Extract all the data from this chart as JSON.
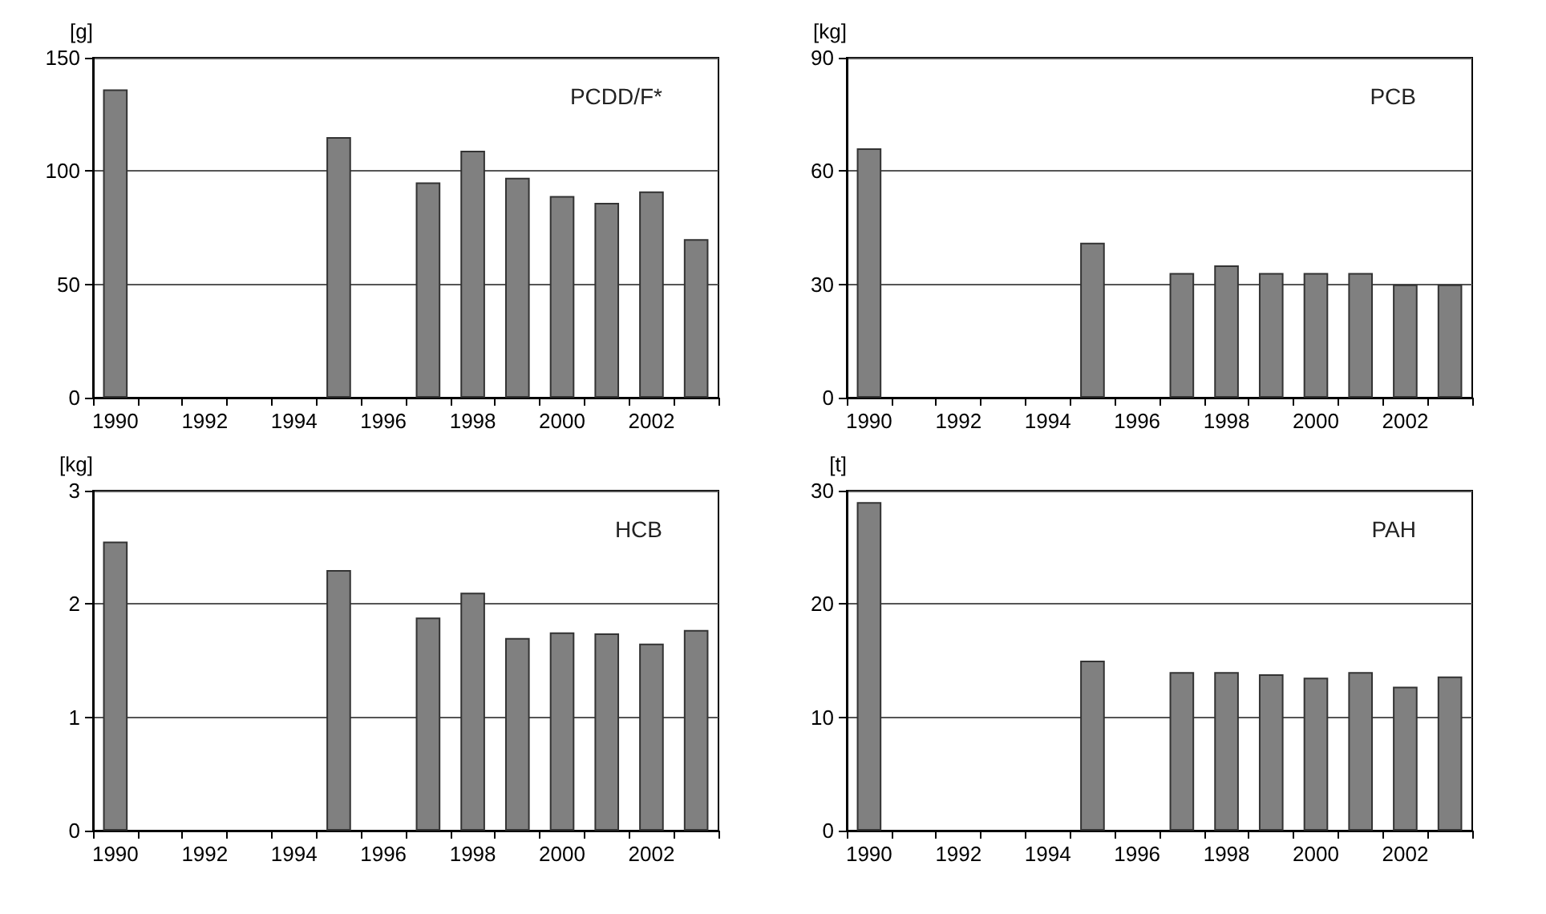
{
  "chart_data": [
    {
      "type": "bar",
      "title": "PCDD/F*",
      "ylabel": "[g]",
      "categories": [
        "1990",
        null,
        "1992",
        null,
        "1994",
        null,
        "1996",
        null,
        "1998",
        null,
        "2000",
        null,
        "2002",
        null
      ],
      "values": [
        136,
        null,
        null,
        null,
        null,
        115,
        null,
        95,
        109,
        97,
        89,
        86,
        91,
        70
      ],
      "color": "#808080",
      "ylim": [
        0,
        150
      ],
      "yticks": [
        0,
        50,
        100,
        150
      ],
      "grid": "y"
    },
    {
      "type": "bar",
      "title": "PCB",
      "ylabel": "[kg]",
      "categories": [
        "1990",
        null,
        "1992",
        null,
        "1994",
        null,
        "1996",
        null,
        "1998",
        null,
        "2000",
        null,
        "2002",
        null
      ],
      "values": [
        66,
        null,
        null,
        null,
        null,
        41,
        null,
        33,
        35,
        33,
        33,
        33,
        30,
        30
      ],
      "color": "#808080",
      "ylim": [
        0,
        90
      ],
      "yticks": [
        0,
        30,
        60,
        90
      ],
      "grid": "y"
    },
    {
      "type": "bar",
      "title": "HCB",
      "ylabel": "[kg]",
      "categories": [
        "1990",
        null,
        "1992",
        null,
        "1994",
        null,
        "1996",
        null,
        "1998",
        null,
        "2000",
        null,
        "2002",
        null
      ],
      "values": [
        2.55,
        null,
        null,
        null,
        null,
        2.3,
        null,
        1.88,
        2.1,
        1.7,
        1.75,
        1.74,
        1.65,
        1.77
      ],
      "color": "#808080",
      "ylim": [
        0,
        3
      ],
      "yticks": [
        0,
        1,
        2,
        3
      ],
      "grid": "y"
    },
    {
      "type": "bar",
      "title": "PAH",
      "ylabel": "[t]",
      "categories": [
        "1990",
        null,
        "1992",
        null,
        "1994",
        null,
        "1996",
        null,
        "1998",
        null,
        "2000",
        null,
        "2002",
        null
      ],
      "values": [
        29,
        null,
        null,
        null,
        null,
        15,
        null,
        14,
        14,
        13.8,
        13.5,
        14,
        12.7,
        13.6
      ],
      "color": "#808080",
      "ylim": [
        0,
        30
      ],
      "yticks": [
        0,
        10,
        20,
        30
      ],
      "grid": "y"
    }
  ]
}
